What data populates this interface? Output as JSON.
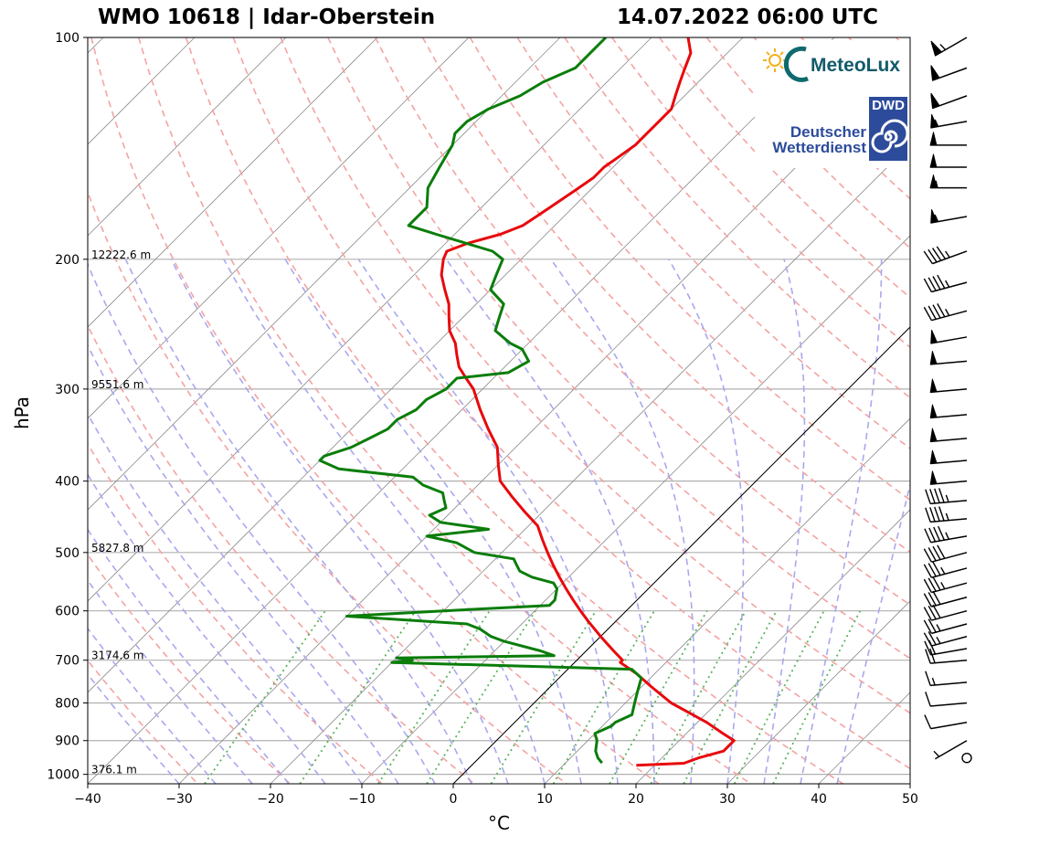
{
  "header": {
    "title_left": "WMO 10618 | Idar-Oberstein",
    "title_right": "14.07.2022 06:00 UTC"
  },
  "logos": {
    "meteolux": "MeteoLux",
    "dwd_badge": "DWD",
    "dwd_line1": "Deutscher",
    "dwd_line2": "Wetterdienst"
  },
  "colors": {
    "temperature": "#e8090c",
    "dewpoint": "#0a7d0a",
    "dry_adiabat": "#f4a3a3",
    "moist_adiabat": "#a8a8ef",
    "mixing_ratio": "#5ab35a",
    "isotherm": "#8c8c8c",
    "isobar": "#b0b0b0"
  },
  "chart_data": {
    "type": "skew-t",
    "title": "WMO 10618 | Idar-Oberstein — 14.07.2022 06:00 UTC",
    "xlabel": "°C",
    "ylabel": "hPa",
    "xlim": [
      -40,
      50
    ],
    "ylim": [
      1030,
      100
    ],
    "x_ticks": [
      "−40",
      "−30",
      "−20",
      "−10",
      "0",
      "10",
      "20",
      "30",
      "40",
      "50"
    ],
    "y_ticks": [
      "100",
      "200",
      "300",
      "400",
      "500",
      "600",
      "700",
      "800",
      "900",
      "1000"
    ],
    "height_labels": [
      {
        "p": 200,
        "text": "12222.6 m"
      },
      {
        "p": 300,
        "text": "9551.6 m"
      },
      {
        "p": 500,
        "text": "5827.8 m"
      },
      {
        "p": 700,
        "text": "3174.6 m"
      },
      {
        "p": 1000,
        "text": "376.1 m"
      }
    ],
    "temperature_profile": [
      [
        972,
        18
      ],
      [
        966,
        23
      ],
      [
        950,
        24
      ],
      [
        930,
        26
      ],
      [
        900,
        26
      ],
      [
        880,
        24
      ],
      [
        850,
        21
      ],
      [
        800,
        15
      ],
      [
        760,
        11
      ],
      [
        730,
        8
      ],
      [
        705,
        5
      ],
      [
        700,
        5
      ],
      [
        680,
        3
      ],
      [
        650,
        0
      ],
      [
        620,
        -3
      ],
      [
        600,
        -5
      ],
      [
        580,
        -7
      ],
      [
        560,
        -9
      ],
      [
        540,
        -11
      ],
      [
        520,
        -13
      ],
      [
        500,
        -15
      ],
      [
        480,
        -17
      ],
      [
        460,
        -19
      ],
      [
        440,
        -22
      ],
      [
        420,
        -25
      ],
      [
        400,
        -28
      ],
      [
        380,
        -30
      ],
      [
        360,
        -32
      ],
      [
        340,
        -35
      ],
      [
        320,
        -38
      ],
      [
        300,
        -41
      ],
      [
        290,
        -43
      ],
      [
        280,
        -45
      ],
      [
        270,
        -46.5
      ],
      [
        260,
        -48
      ],
      [
        250,
        -50
      ],
      [
        240,
        -51.5
      ],
      [
        230,
        -53
      ],
      [
        220,
        -55
      ],
      [
        210,
        -57
      ],
      [
        200,
        -58.5
      ],
      [
        195,
        -59
      ],
      [
        190,
        -57.5
      ],
      [
        185,
        -55
      ],
      [
        180,
        -53.5
      ],
      [
        175,
        -53
      ],
      [
        170,
        -52.5
      ],
      [
        165,
        -52
      ],
      [
        160,
        -51.5
      ],
      [
        155,
        -51
      ],
      [
        150,
        -51
      ],
      [
        145,
        -50.5
      ],
      [
        140,
        -50
      ],
      [
        135,
        -50
      ],
      [
        130,
        -50
      ],
      [
        125,
        -50
      ],
      [
        120,
        -51
      ],
      [
        115,
        -52
      ],
      [
        110,
        -53
      ],
      [
        105,
        -54
      ],
      [
        100,
        -56
      ]
    ],
    "dewpoint_profile": [
      [
        965,
        14
      ],
      [
        950,
        13
      ],
      [
        930,
        12
      ],
      [
        900,
        11
      ],
      [
        880,
        10
      ],
      [
        860,
        11
      ],
      [
        850,
        11
      ],
      [
        830,
        12
      ],
      [
        800,
        11
      ],
      [
        770,
        10
      ],
      [
        740,
        9
      ],
      [
        720,
        7
      ],
      [
        705,
        -20
      ],
      [
        700,
        -18
      ],
      [
        695,
        -20
      ],
      [
        690,
        -3
      ],
      [
        680,
        -5
      ],
      [
        660,
        -10
      ],
      [
        650,
        -12
      ],
      [
        635,
        -14
      ],
      [
        625,
        -16
      ],
      [
        610,
        -30
      ],
      [
        600,
        -20
      ],
      [
        590,
        -9
      ],
      [
        580,
        -9
      ],
      [
        560,
        -10
      ],
      [
        550,
        -11
      ],
      [
        540,
        -14
      ],
      [
        530,
        -16
      ],
      [
        520,
        -17
      ],
      [
        510,
        -18
      ],
      [
        500,
        -23
      ],
      [
        485,
        -26
      ],
      [
        475,
        -30
      ],
      [
        465,
        -24
      ],
      [
        455,
        -30
      ],
      [
        445,
        -32
      ],
      [
        435,
        -31
      ],
      [
        425,
        -32
      ],
      [
        415,
        -33
      ],
      [
        405,
        -36
      ],
      [
        395,
        -38
      ],
      [
        385,
        -47
      ],
      [
        375,
        -50
      ],
      [
        370,
        -50
      ],
      [
        360,
        -48
      ],
      [
        350,
        -47
      ],
      [
        340,
        -46
      ],
      [
        330,
        -46
      ],
      [
        320,
        -45
      ],
      [
        310,
        -45
      ],
      [
        300,
        -44
      ],
      [
        290,
        -44
      ],
      [
        285,
        -39
      ],
      [
        275,
        -38
      ],
      [
        265,
        -40
      ],
      [
        260,
        -42
      ],
      [
        250,
        -45
      ],
      [
        240,
        -46
      ],
      [
        230,
        -47
      ],
      [
        220,
        -50
      ],
      [
        210,
        -51
      ],
      [
        200,
        -52
      ],
      [
        195,
        -54
      ],
      [
        185,
        -62
      ],
      [
        180,
        -66
      ],
      [
        170,
        -66
      ],
      [
        160,
        -68
      ],
      [
        150,
        -69
      ],
      [
        140,
        -70
      ],
      [
        135,
        -71
      ],
      [
        130,
        -71
      ],
      [
        125,
        -70
      ],
      [
        120,
        -68
      ],
      [
        115,
        -67
      ],
      [
        110,
        -65
      ],
      [
        105,
        -65
      ],
      [
        100,
        -65
      ]
    ],
    "wind_barbs": [
      [
        100,
        240,
        65
      ],
      [
        110,
        250,
        60
      ],
      [
        120,
        250,
        60
      ],
      [
        130,
        260,
        55
      ],
      [
        140,
        270,
        50
      ],
      [
        150,
        270,
        50
      ],
      [
        160,
        270,
        55
      ],
      [
        175,
        260,
        55
      ],
      [
        195,
        250,
        45
      ],
      [
        215,
        255,
        45
      ],
      [
        235,
        255,
        45
      ],
      [
        255,
        260,
        50
      ],
      [
        275,
        265,
        50
      ],
      [
        300,
        265,
        50
      ],
      [
        325,
        265,
        50
      ],
      [
        350,
        265,
        50
      ],
      [
        375,
        265,
        50
      ],
      [
        400,
        265,
        50
      ],
      [
        425,
        265,
        45
      ],
      [
        450,
        265,
        45
      ],
      [
        475,
        260,
        45
      ],
      [
        500,
        255,
        40
      ],
      [
        525,
        255,
        35
      ],
      [
        550,
        255,
        35
      ],
      [
        575,
        255,
        30
      ],
      [
        600,
        255,
        30
      ],
      [
        625,
        255,
        25
      ],
      [
        650,
        255,
        25
      ],
      [
        675,
        260,
        20
      ],
      [
        700,
        265,
        20
      ],
      [
        750,
        265,
        15
      ],
      [
        800,
        265,
        10
      ],
      [
        850,
        260,
        10
      ],
      [
        900,
        240,
        5
      ],
      [
        950,
        0,
        0
      ]
    ]
  }
}
